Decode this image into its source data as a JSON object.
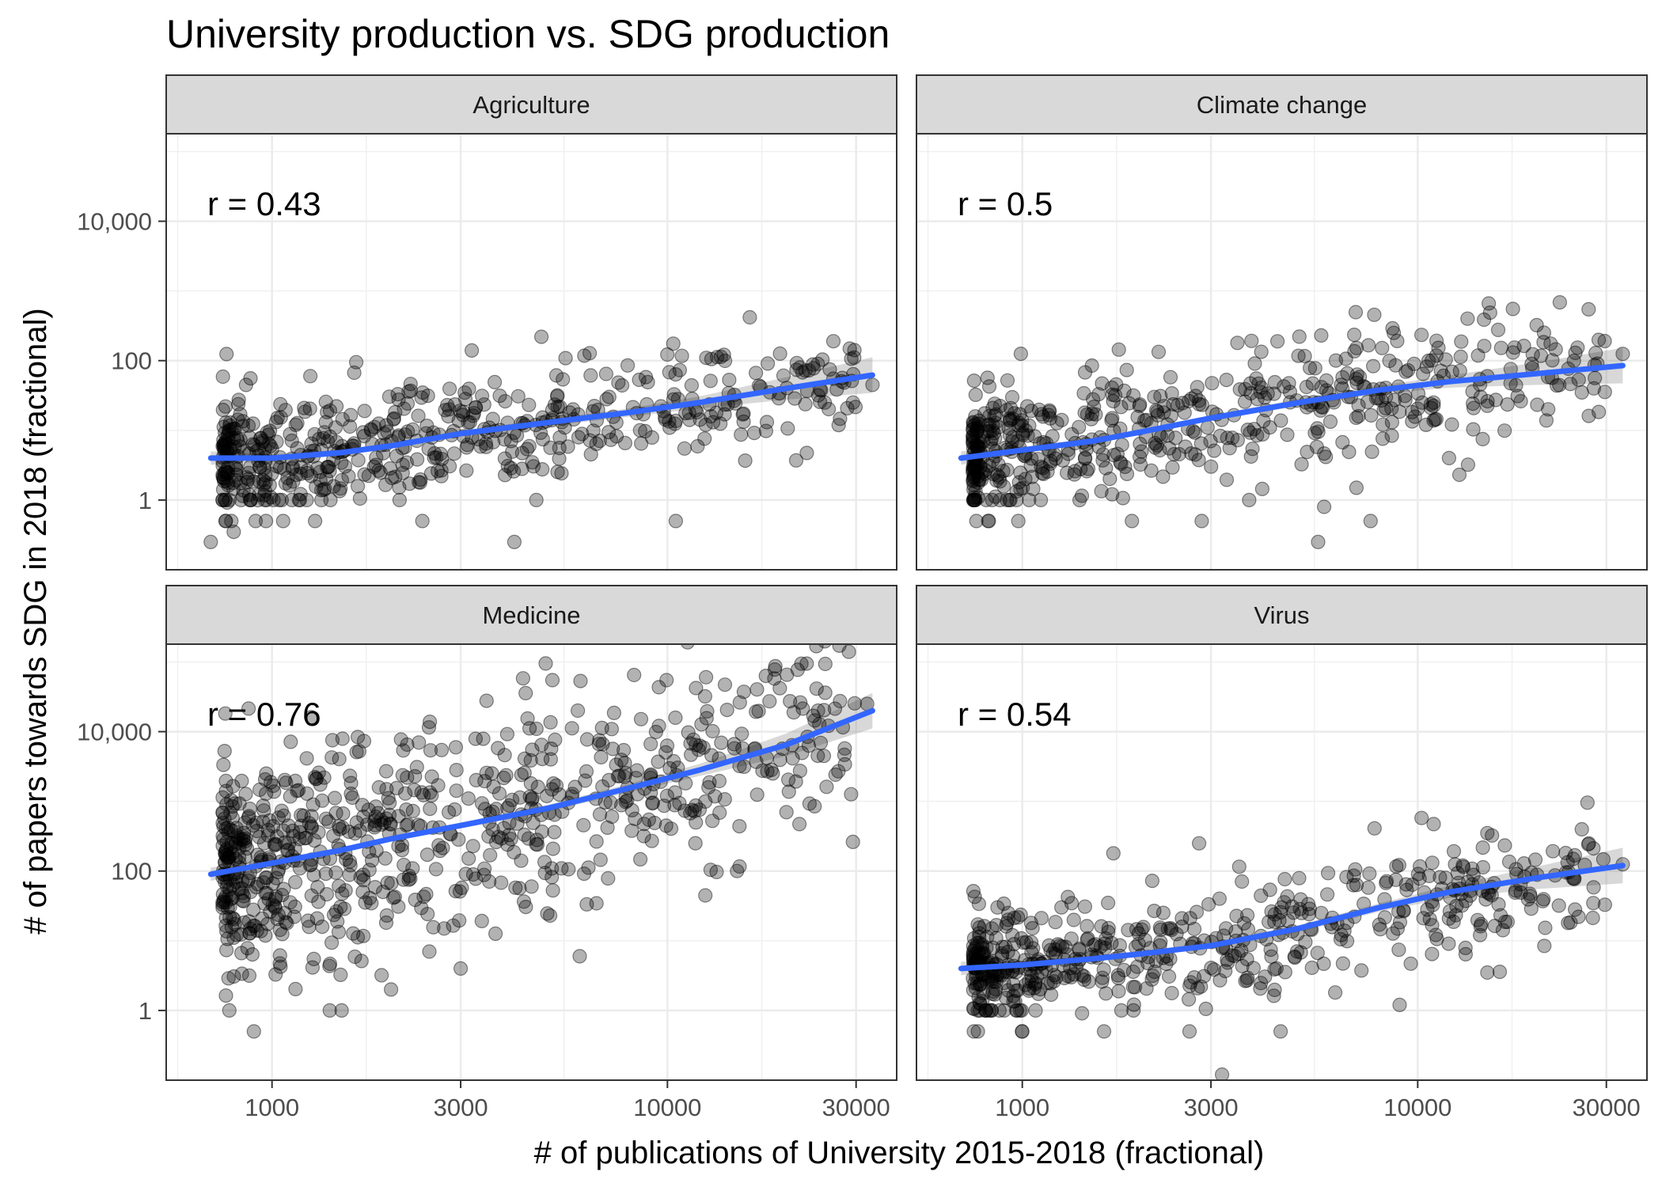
{
  "chart_data": {
    "type": "scatter",
    "title": "University production vs. SDG production",
    "xlabel": "# of publications of University 2015-2018 (fractional)",
    "ylabel": "# of papers towards SDG in 2018 (fractional)",
    "x_scale": "log10",
    "y_scale": "log10",
    "xlim": [
      540,
      38000
    ],
    "ylim": [
      0.1,
      180000
    ],
    "x_ticks": [
      1000,
      3000,
      10000,
      30000
    ],
    "x_tick_labels": [
      "1000",
      "3000",
      "10000",
      "30000"
    ],
    "y_ticks": [
      1,
      100,
      10000
    ],
    "y_tick_labels": [
      "1",
      "100",
      "10,000"
    ],
    "grid": true,
    "colors": {
      "points": "#000000",
      "smooth_line": "#3366ff",
      "ribbon": "#999999",
      "strip_bg": "#d9d9d9"
    },
    "panels": [
      {
        "name": "Agriculture",
        "annotation": "r = 0.43",
        "point_seed": 11,
        "points": {
          "count": 560,
          "y_center": 6,
          "y_spread": 0.42,
          "lo_floor": 0.5,
          "outliers": [
            [
              4800,
              220
            ],
            [
              3200,
              140
            ],
            [
              1250,
              60
            ],
            [
              700,
              0.25
            ],
            [
              800,
              0.35
            ],
            [
              10500,
              0.5
            ],
            [
              4100,
              0.25
            ],
            [
              2400,
              0.5
            ],
            [
              24000,
              90
            ],
            [
              33000,
              45
            ],
            [
              25000,
              25
            ],
            [
              12500,
              12
            ]
          ]
        },
        "smooth": {
          "x": [
            700,
            1000,
            1500,
            2000,
            3000,
            5000,
            8000,
            12000,
            20000,
            33000
          ],
          "y": [
            4,
            4,
            4.8,
            6,
            9,
            13,
            18,
            25,
            40,
            62
          ],
          "band_factor": [
            1.25,
            1.12,
            1.1,
            1.1,
            1.1,
            1.12,
            1.15,
            1.22,
            1.45,
            1.8
          ]
        }
      },
      {
        "name": "Climate change",
        "annotation": "r = 0.5",
        "point_seed": 23,
        "points": {
          "count": 560,
          "y_center": 8,
          "y_spread": 0.45,
          "lo_floor": 0.5,
          "outliers": [
            [
              5700,
              230
            ],
            [
              3500,
              180
            ],
            [
              1500,
              85
            ],
            [
              5600,
              0.25
            ],
            [
              7600,
              0.5
            ],
            [
              5800,
              0.8
            ],
            [
              7000,
              1.5
            ],
            [
              10500,
              12
            ],
            [
              26000,
              35
            ],
            [
              33000,
              125
            ],
            [
              15000,
              60
            ],
            [
              12000,
              4
            ]
          ]
        },
        "smooth": {
          "x": [
            700,
            1000,
            1500,
            2000,
            3000,
            5000,
            8000,
            12000,
            20000,
            33000
          ],
          "y": [
            4,
            5.2,
            7,
            9.5,
            15,
            25,
            38,
            50,
            65,
            85
          ],
          "band_factor": [
            1.25,
            1.12,
            1.1,
            1.1,
            1.1,
            1.12,
            1.15,
            1.22,
            1.45,
            1.8
          ]
        }
      },
      {
        "name": "Medicine",
        "annotation": "r = 0.76",
        "point_seed": 37,
        "points": {
          "count": 760,
          "y_center": 220,
          "y_spread": 0.75,
          "lo_floor": 0.5,
          "outliers": [
            [
              780,
              1
            ],
            [
              900,
              0.5
            ],
            [
              1500,
              1
            ],
            [
              2000,
              2
            ],
            [
              32000,
              25000
            ],
            [
              24000,
              4500
            ],
            [
              20000,
              700
            ],
            [
              15000,
              100
            ],
            [
              6000,
              6
            ],
            [
              3000,
              4
            ],
            [
              2500,
              7
            ],
            [
              1400,
              1
            ]
          ]
        },
        "smooth": {
          "x": [
            700,
            1000,
            1500,
            2000,
            3000,
            5000,
            8000,
            12000,
            20000,
            33000
          ],
          "y": [
            90,
            130,
            200,
            290,
            450,
            800,
            1550,
            2800,
            6500,
            20000
          ],
          "band_factor": [
            1.25,
            1.12,
            1.1,
            1.1,
            1.1,
            1.12,
            1.15,
            1.22,
            1.45,
            1.8
          ]
        }
      },
      {
        "name": "Virus",
        "annotation": "r = 0.54",
        "point_seed": 53,
        "points": {
          "count": 560,
          "y_center": 6,
          "y_spread": 0.42,
          "lo_floor": 0.5,
          "outliers": [
            [
              3200,
              0.12
            ],
            [
              4500,
              0.5
            ],
            [
              1000,
              0.5
            ],
            [
              15000,
              350
            ],
            [
              13000,
              120
            ],
            [
              1700,
              180
            ],
            [
              2800,
              250
            ],
            [
              33000,
              125
            ],
            [
              25000,
              28
            ],
            [
              24000,
              18
            ],
            [
              15000,
              3.5
            ],
            [
              9000,
              1.2
            ]
          ]
        },
        "smooth": {
          "x": [
            700,
            1000,
            1500,
            2000,
            3000,
            5000,
            8000,
            12000,
            20000,
            33000
          ],
          "y": [
            4,
            4.5,
            5.5,
            6.5,
            8.5,
            15,
            30,
            50,
            80,
            120
          ],
          "band_factor": [
            1.25,
            1.12,
            1.1,
            1.1,
            1.1,
            1.12,
            1.15,
            1.22,
            1.45,
            1.8
          ]
        }
      }
    ]
  }
}
